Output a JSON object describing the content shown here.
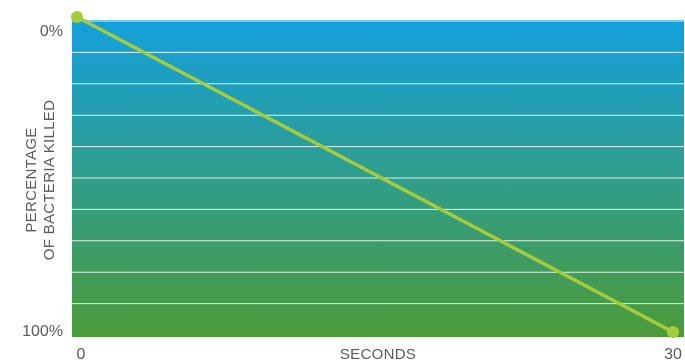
{
  "chart_data": {
    "type": "line",
    "xlabel": "SECONDS",
    "ylabel_lines": [
      "PERCENTAGE",
      "OF BACTERIA KILLED"
    ],
    "x_tick_labels": [
      "0",
      "30"
    ],
    "y_tick_labels": [
      "0%",
      "100%"
    ],
    "xlim": [
      0,
      30
    ],
    "ylim": [
      0,
      100
    ],
    "y_axis_inverted": true,
    "grid": true,
    "series": [
      {
        "x": [
          0,
          30
        ],
        "y": [
          0,
          100
        ],
        "color": "#a6cb3b"
      }
    ],
    "background_gradient": [
      "#14a0de",
      "#4c9b3a"
    ]
  }
}
